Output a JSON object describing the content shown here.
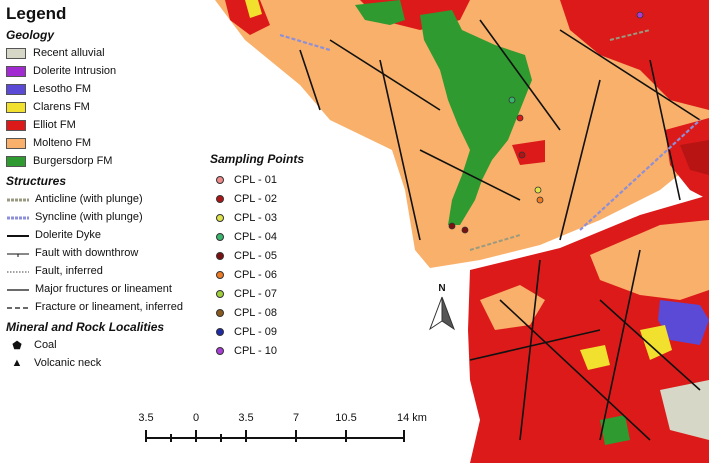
{
  "legend": {
    "title": "Legend",
    "geology": {
      "heading": "Geology",
      "items": [
        {
          "label": "Recent alluvial",
          "color": "#d6d7c6"
        },
        {
          "label": "Dolerite   Intrusion",
          "color": "#a12bd0"
        },
        {
          "label": "Lesotho FM",
          "color": "#5b4ad6"
        },
        {
          "label": "Clarens  FM",
          "color": "#f2e02e"
        },
        {
          "label": "Elliot  FM",
          "color": "#dc1a1a"
        },
        {
          "label": "Molteno FM",
          "color": "#f9b06a"
        },
        {
          "label": "Burgersdorp FM",
          "color": "#2f9a2f"
        }
      ]
    },
    "structures": {
      "heading": "Structures",
      "items": [
        {
          "label": "Anticline (with plunge)",
          "icon": "anticline-line-icon"
        },
        {
          "label": "Syncline (with plunge)",
          "icon": "syncline-line-icon"
        },
        {
          "label": "Dolerite  Dyke",
          "icon": "dyke-line-icon"
        },
        {
          "label": "Fault with downthrow",
          "icon": "fault-downthrow-icon"
        },
        {
          "label": "Fault, inferred",
          "icon": "fault-inferred-icon"
        },
        {
          "label": "Major fructures or lineament",
          "icon": "major-lineament-icon"
        },
        {
          "label": "Fracture or lineament, inferred",
          "icon": "inferred-lineament-icon"
        }
      ]
    },
    "minerals": {
      "heading": "Mineral and Rock Localities",
      "items": [
        {
          "label": "Coal",
          "symbol": "⬟",
          "icon": "pentagon-icon"
        },
        {
          "label": "Volcanic neck",
          "symbol": "▲",
          "icon": "triangle-icon"
        }
      ]
    }
  },
  "sampling": {
    "heading": "Sampling Points",
    "items": [
      {
        "label": "CPL - 01",
        "color": "#ef8a8a"
      },
      {
        "label": "CPL - 02",
        "color": "#b01515"
      },
      {
        "label": "CPL - 03",
        "color": "#dfe34a"
      },
      {
        "label": "CPL - 04",
        "color": "#39b56e"
      },
      {
        "label": "CPL - 05",
        "color": "#7a1010"
      },
      {
        "label": "CPL - 06",
        "color": "#ef7a24"
      },
      {
        "label": "CPL - 07",
        "color": "#9fcf3a"
      },
      {
        "label": "CPL - 08",
        "color": "#8a5a1c"
      },
      {
        "label": "CPL - 09",
        "color": "#1f2aa8"
      },
      {
        "label": "CPL - 10",
        "color": "#a73fd6"
      }
    ]
  },
  "north_arrow": {
    "label": "N"
  },
  "scale_bar": {
    "labels": [
      "3.5",
      "0",
      "3.5",
      "7",
      "10.5",
      "14 km"
    ]
  }
}
